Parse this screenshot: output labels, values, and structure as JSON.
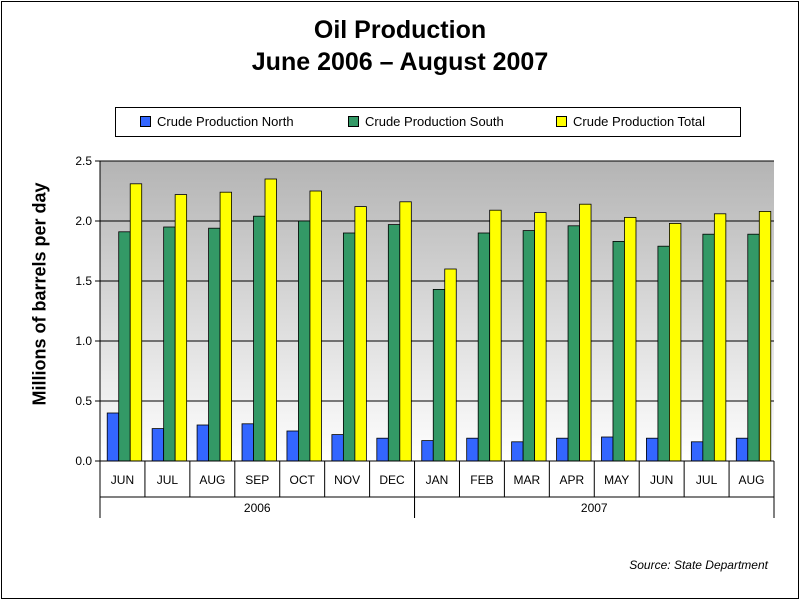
{
  "chart_data": {
    "type": "bar",
    "title": "Oil Production",
    "subtitle": "June 2006 – August 2007",
    "ylabel": "Millions of barrels per day",
    "xlabel": "",
    "ylim": [
      0,
      2.5
    ],
    "yticks": [
      "0.0",
      "0.5",
      "1.0",
      "1.5",
      "2.0",
      "2.5"
    ],
    "grid": true,
    "legend_position": "top",
    "categories": [
      "JUN",
      "JUL",
      "AUG",
      "SEP",
      "OCT",
      "NOV",
      "DEC",
      "JAN",
      "FEB",
      "MAR",
      "APR",
      "MAY",
      "JUN",
      "JUL",
      "AUG"
    ],
    "groups": [
      {
        "label": "2006",
        "count": 7
      },
      {
        "label": "2007",
        "count": 8
      }
    ],
    "series": [
      {
        "name": "Crude Production North",
        "color": "#3366ff",
        "values": [
          0.4,
          0.27,
          0.3,
          0.31,
          0.25,
          0.22,
          0.19,
          0.17,
          0.19,
          0.16,
          0.19,
          0.2,
          0.19,
          0.16,
          0.19
        ]
      },
      {
        "name": "Crude Production South",
        "color": "#339966",
        "values": [
          1.91,
          1.95,
          1.94,
          2.04,
          2.0,
          1.9,
          1.97,
          1.43,
          1.9,
          1.92,
          1.96,
          1.83,
          1.79,
          1.89,
          1.89
        ]
      },
      {
        "name": "Crude Production Total",
        "color": "#ffff00",
        "values": [
          2.31,
          2.22,
          2.24,
          2.35,
          2.25,
          2.12,
          2.16,
          1.6,
          2.09,
          2.07,
          2.14,
          2.03,
          1.98,
          2.06,
          2.08
        ]
      }
    ],
    "plot_background": "#c0c0c0"
  },
  "source": "Source: State Department"
}
